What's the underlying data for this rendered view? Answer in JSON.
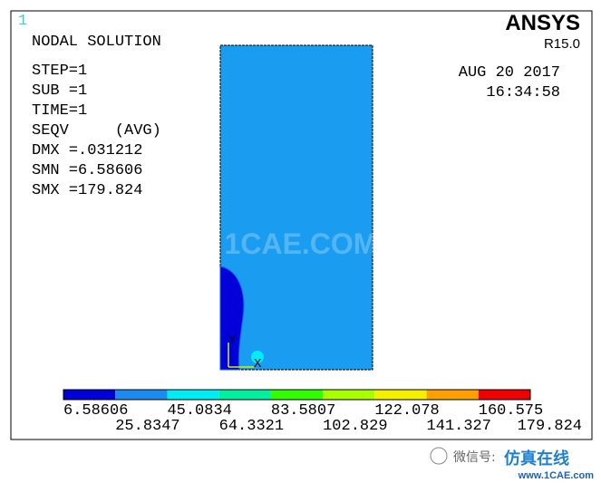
{
  "window": {
    "number": "1",
    "solution": "NODAL SOLUTION",
    "info": [
      "STEP=1",
      "SUB =1",
      "TIME=1",
      "SEQV     (AVG)",
      "DMX =.031212",
      "SMN =6.58606",
      "SMX =179.824"
    ],
    "brand": "ANSYS",
    "version": "R15.0",
    "date": "AUG 20 2017",
    "time": "16:34:58",
    "axes": [
      "Y",
      "X"
    ],
    "watermark": "1CAE.COM"
  },
  "legend": {
    "colors": [
      "#0000d8",
      "#1a8cf0",
      "#00ecf4",
      "#00f0a0",
      "#30ff00",
      "#a8ff00",
      "#f4f000",
      "#ffa000",
      "#f00000"
    ],
    "labels": [
      "6.58606",
      "25.8347",
      "45.0834",
      "64.3321",
      "83.5807",
      "102.829",
      "122.078",
      "141.327",
      "160.575",
      "179.824"
    ]
  },
  "footer": {
    "wechat": "微信号: ",
    "site_name": "仿真在线",
    "site_url": "www.1CAE.com"
  }
}
